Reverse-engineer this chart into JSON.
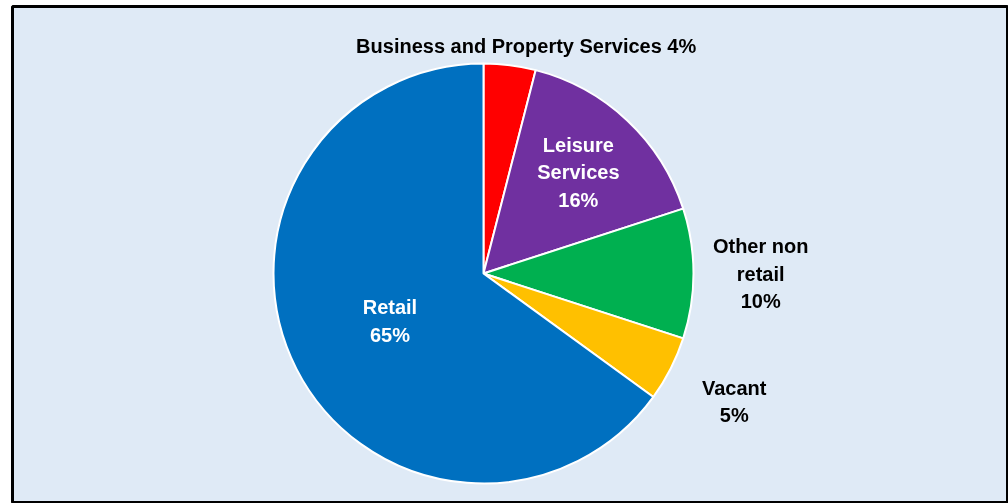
{
  "chart_data": {
    "type": "pie",
    "categories": [
      "Business and Property Services",
      "Leisure Services",
      "Other non retail",
      "Vacant",
      "Retail"
    ],
    "values": [
      4,
      16,
      10,
      5,
      65
    ],
    "colors": [
      "#ff0000",
      "#7030a0",
      "#00b050",
      "#ffc000",
      "#0070c0"
    ],
    "value_labels": [
      "4%",
      "16%",
      "10%",
      "5%",
      "65%"
    ]
  }
}
